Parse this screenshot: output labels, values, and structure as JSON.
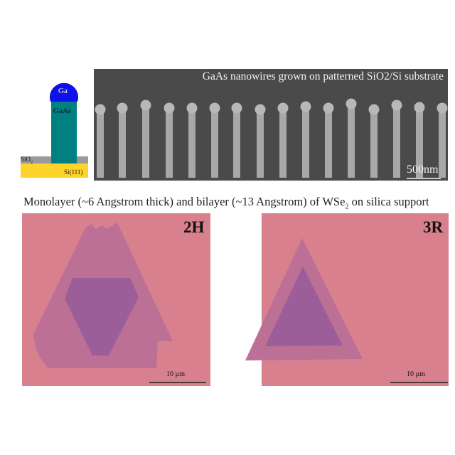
{
  "schematic": {
    "droplet_label": "Ga",
    "wire_label": "GaAs",
    "oxide_label": "SiO",
    "oxide_subscript": "2",
    "substrate_label": "Si(111)"
  },
  "sem": {
    "title": "GaAs nanowires grown on patterned SiO2/Si substrate",
    "scale_bar": "500nm"
  },
  "caption": {
    "before": "Monolayer (~6 Angstrom thick) and bilayer (~13 Angstrom) of WSe",
    "subscript": "2",
    "after": " on silica support"
  },
  "panels": [
    {
      "label": "2H",
      "scale_bar": "10 µm"
    },
    {
      "label": "3R",
      "scale_bar": "10 µm"
    }
  ],
  "colors": {
    "ga": "#1010e8",
    "gaas": "#008080",
    "sio2": "#9a9a9a",
    "si": "#ffd42a",
    "sem_bg": "#4a4a4a",
    "substrate_pink": "#d8808e",
    "monolayer": "#bc7096",
    "bilayer": "#9c5e98"
  }
}
